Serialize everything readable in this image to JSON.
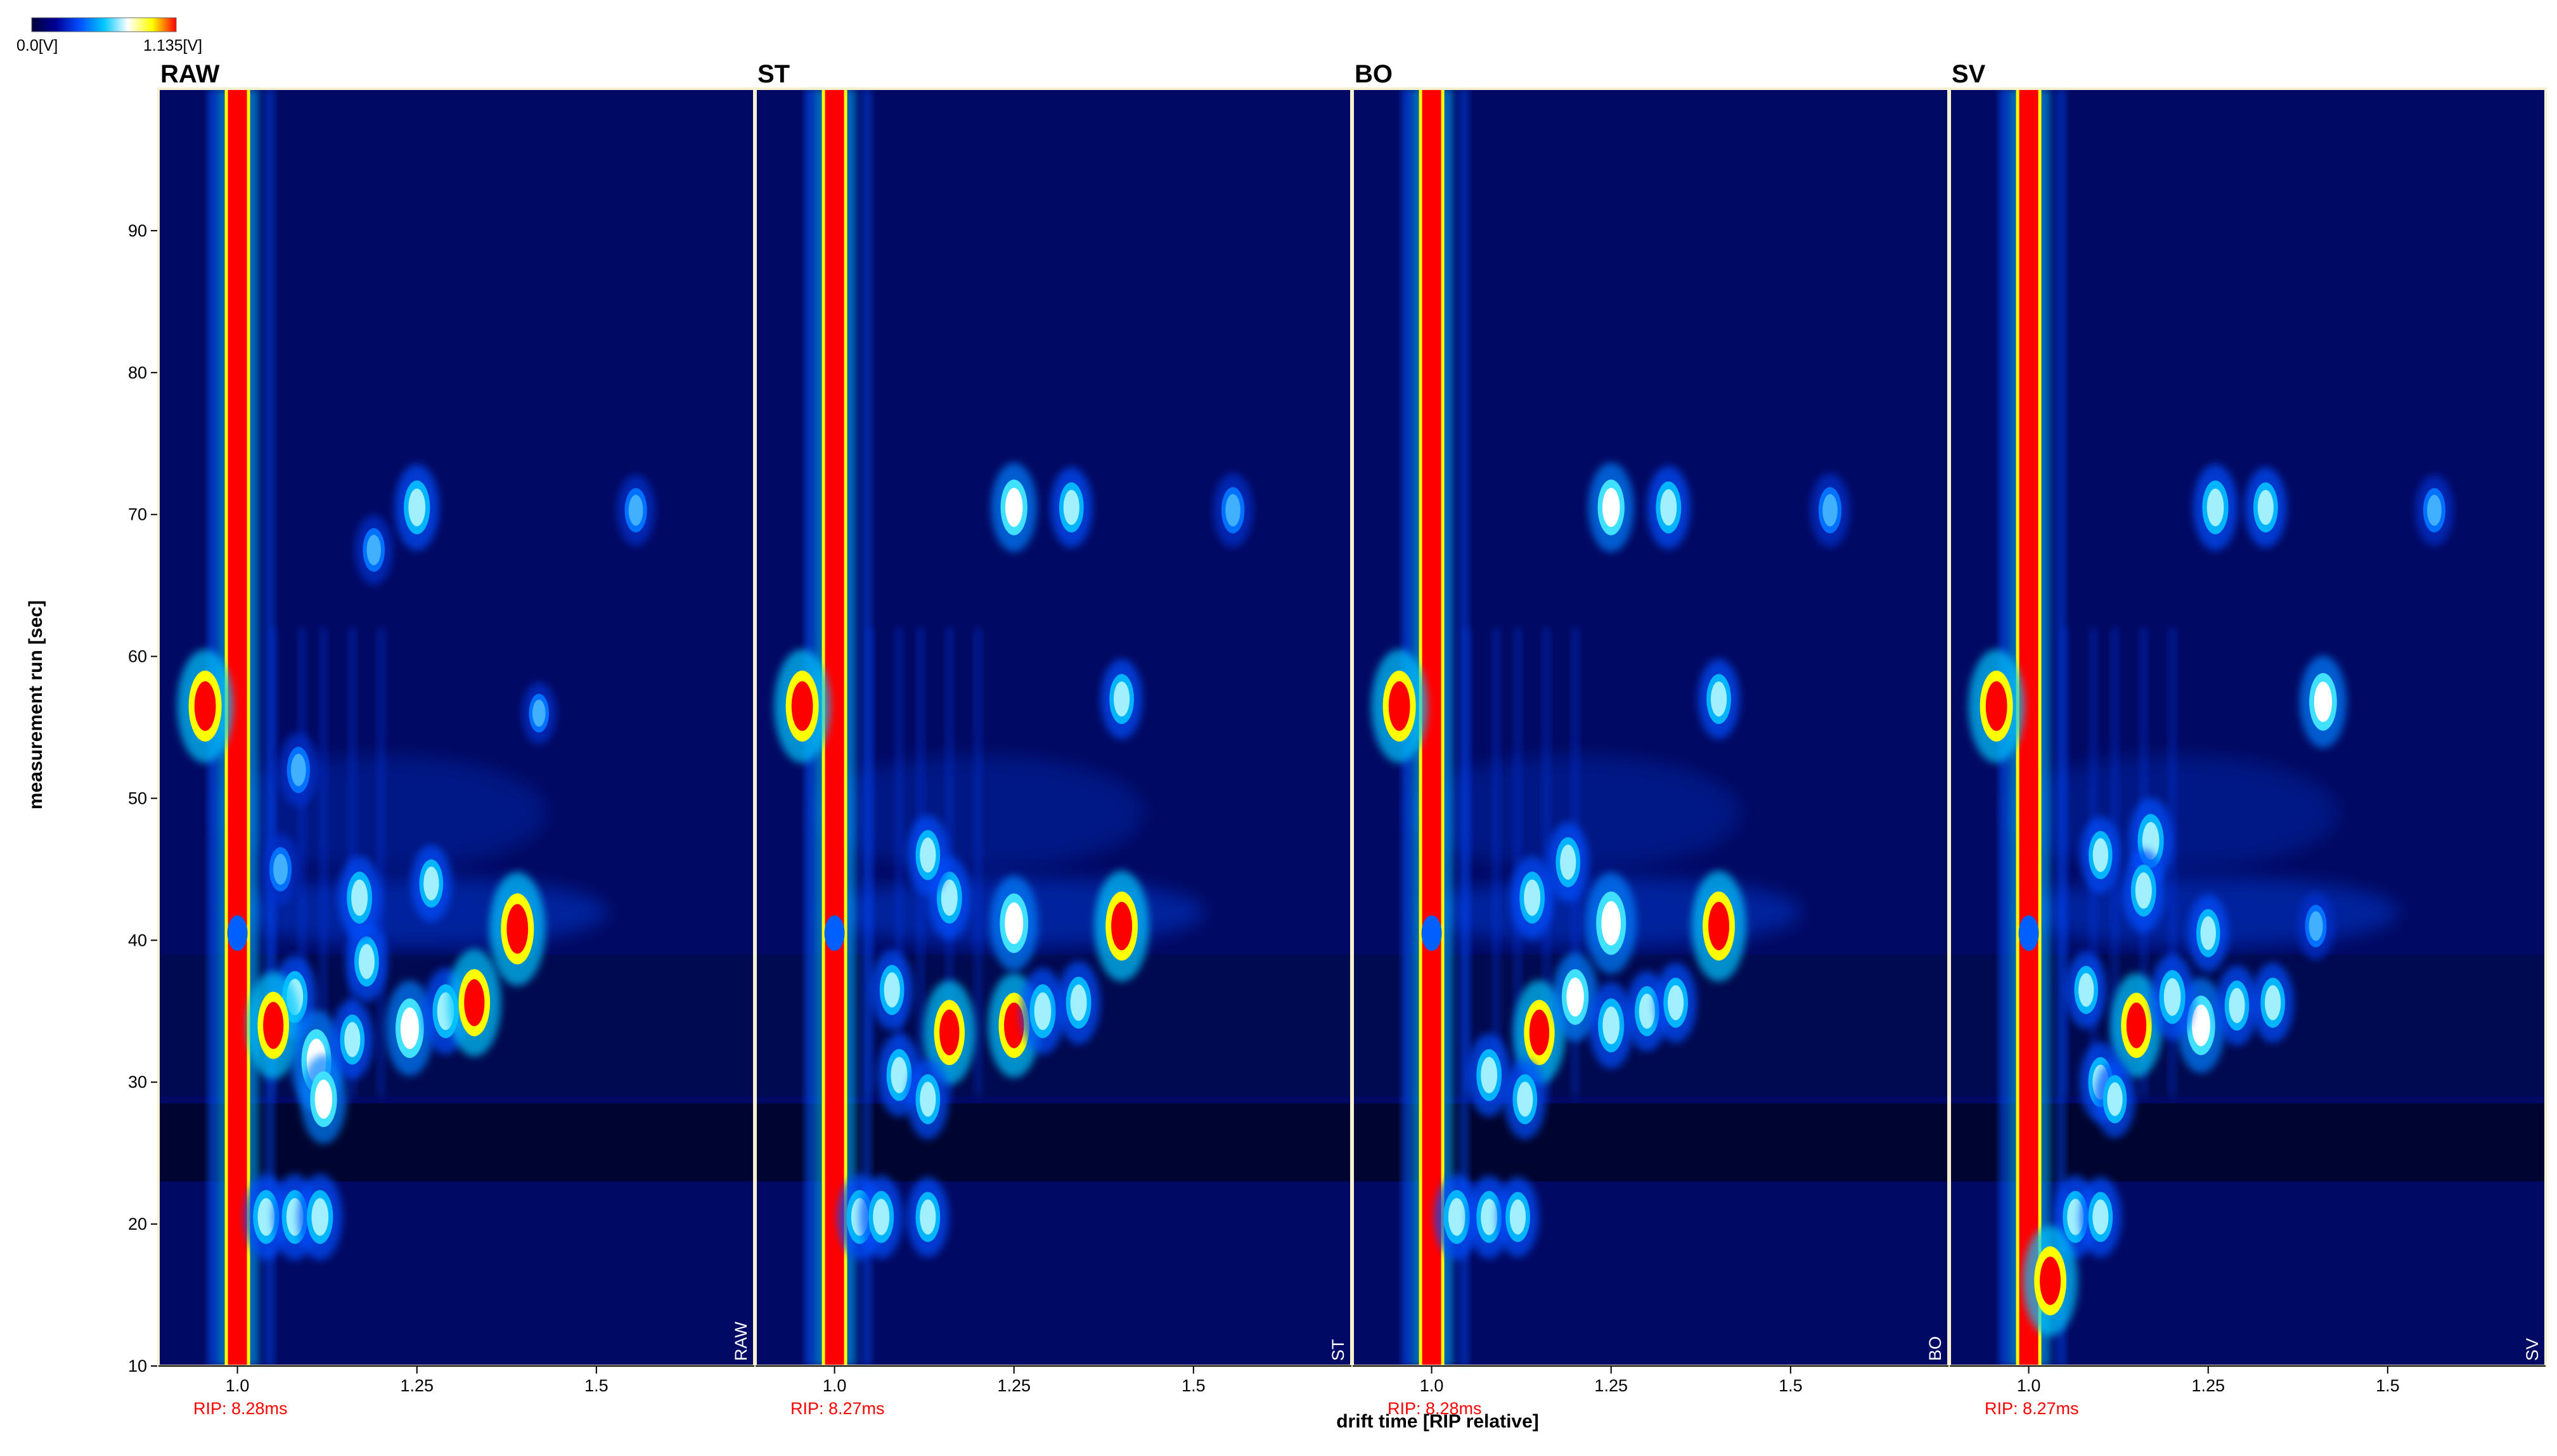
{
  "colorbar": {
    "min_label": "0.0[V]",
    "max_label": "1.135[V]",
    "min_value": 0.0,
    "max_value": 1.135,
    "colors": [
      "#00003c",
      "#000096",
      "#0050ff",
      "#00c8ff",
      "#ffffff",
      "#ffff00",
      "#ff0000"
    ]
  },
  "colors": {
    "rip_label": "#ff0000",
    "corner_label": "#ffffff",
    "panel_separator": "#f5f0d0",
    "background": "#000a64"
  },
  "chart_data": {
    "type": "heatmap",
    "xlabel": "drift time [RIP relative]",
    "ylabel": "measurement run [sec]",
    "xlim": [
      0.89,
      1.72
    ],
    "ylim": [
      10,
      100
    ],
    "xticks": [
      1.0,
      1.25,
      1.5
    ],
    "xtick_labels": [
      "1.0",
      "1.25",
      "1.5"
    ],
    "yticks": [
      10,
      20,
      30,
      40,
      50,
      60,
      70,
      80,
      90
    ],
    "ytick_labels": [
      "10",
      "20",
      "30",
      "40",
      "50",
      "60",
      "70",
      "80",
      "90"
    ],
    "panels": [
      {
        "title": "RAW",
        "corner_label": "RAW",
        "rip_label": "RIP: 8.28ms",
        "peaks": [
          {
            "x": 0.955,
            "y": 56.5,
            "i": 1.0
          },
          {
            "x": 1.39,
            "y": 40.8,
            "i": 1.0
          },
          {
            "x": 1.25,
            "y": 70.5,
            "i": 0.55
          },
          {
            "x": 1.555,
            "y": 70.3,
            "i": 0.3
          },
          {
            "x": 1.19,
            "y": 67.5,
            "i": 0.28
          },
          {
            "x": 1.08,
            "y": 36.0,
            "i": 0.5
          },
          {
            "x": 1.05,
            "y": 34.0,
            "i": 0.9
          },
          {
            "x": 1.11,
            "y": 31.5,
            "i": 0.8
          },
          {
            "x": 1.12,
            "y": 28.8,
            "i": 0.6
          },
          {
            "x": 1.16,
            "y": 33.0,
            "i": 0.45
          },
          {
            "x": 1.24,
            "y": 33.8,
            "i": 0.7
          },
          {
            "x": 1.29,
            "y": 35.0,
            "i": 0.55
          },
          {
            "x": 1.33,
            "y": 35.6,
            "i": 0.9
          },
          {
            "x": 1.18,
            "y": 38.5,
            "i": 0.45
          },
          {
            "x": 1.17,
            "y": 43.0,
            "i": 0.5
          },
          {
            "x": 1.27,
            "y": 44.0,
            "i": 0.4
          },
          {
            "x": 1.085,
            "y": 52.0,
            "i": 0.35
          },
          {
            "x": 1.06,
            "y": 45.0,
            "i": 0.3
          },
          {
            "x": 1.04,
            "y": 20.5,
            "i": 0.55
          },
          {
            "x": 1.08,
            "y": 20.5,
            "i": 0.55
          },
          {
            "x": 1.115,
            "y": 20.5,
            "i": 0.55
          },
          {
            "x": 1.42,
            "y": 56.0,
            "i": 0.15
          }
        ]
      },
      {
        "title": "ST",
        "corner_label": "ST",
        "rip_label": "RIP: 8.27ms",
        "peaks": [
          {
            "x": 0.955,
            "y": 56.5,
            "i": 1.0
          },
          {
            "x": 1.4,
            "y": 41.0,
            "i": 0.95
          },
          {
            "x": 1.25,
            "y": 70.5,
            "i": 0.6
          },
          {
            "x": 1.33,
            "y": 70.5,
            "i": 0.45
          },
          {
            "x": 1.555,
            "y": 70.3,
            "i": 0.35
          },
          {
            "x": 1.4,
            "y": 57.0,
            "i": 0.45
          },
          {
            "x": 1.16,
            "y": 33.5,
            "i": 0.85
          },
          {
            "x": 1.25,
            "y": 34.0,
            "i": 0.85
          },
          {
            "x": 1.29,
            "y": 35.0,
            "i": 0.55
          },
          {
            "x": 1.34,
            "y": 35.6,
            "i": 0.5
          },
          {
            "x": 1.25,
            "y": 41.2,
            "i": 0.7
          },
          {
            "x": 1.16,
            "y": 43.0,
            "i": 0.5
          },
          {
            "x": 1.13,
            "y": 46.0,
            "i": 0.45
          },
          {
            "x": 1.09,
            "y": 30.5,
            "i": 0.5
          },
          {
            "x": 1.13,
            "y": 28.8,
            "i": 0.45
          },
          {
            "x": 1.08,
            "y": 36.5,
            "i": 0.45
          },
          {
            "x": 1.035,
            "y": 20.5,
            "i": 0.55
          },
          {
            "x": 1.065,
            "y": 20.5,
            "i": 0.5
          },
          {
            "x": 1.13,
            "y": 20.5,
            "i": 0.45
          }
        ]
      },
      {
        "title": "BO",
        "corner_label": "BO",
        "rip_label": "RIP: 8.28ms",
        "peaks": [
          {
            "x": 0.955,
            "y": 56.5,
            "i": 1.0
          },
          {
            "x": 1.4,
            "y": 41.0,
            "i": 0.95
          },
          {
            "x": 1.25,
            "y": 70.5,
            "i": 0.6
          },
          {
            "x": 1.33,
            "y": 70.5,
            "i": 0.5
          },
          {
            "x": 1.555,
            "y": 70.3,
            "i": 0.35
          },
          {
            "x": 1.4,
            "y": 57.0,
            "i": 0.45
          },
          {
            "x": 1.25,
            "y": 41.2,
            "i": 0.8
          },
          {
            "x": 1.15,
            "y": 33.5,
            "i": 0.85
          },
          {
            "x": 1.2,
            "y": 36.0,
            "i": 0.6
          },
          {
            "x": 1.25,
            "y": 34.0,
            "i": 0.55
          },
          {
            "x": 1.3,
            "y": 35.0,
            "i": 0.45
          },
          {
            "x": 1.34,
            "y": 35.6,
            "i": 0.45
          },
          {
            "x": 1.14,
            "y": 43.0,
            "i": 0.5
          },
          {
            "x": 1.19,
            "y": 45.5,
            "i": 0.45
          },
          {
            "x": 1.08,
            "y": 30.5,
            "i": 0.5
          },
          {
            "x": 1.13,
            "y": 28.8,
            "i": 0.45
          },
          {
            "x": 1.035,
            "y": 20.5,
            "i": 0.55
          },
          {
            "x": 1.08,
            "y": 20.5,
            "i": 0.5
          },
          {
            "x": 1.12,
            "y": 20.5,
            "i": 0.45
          }
        ]
      },
      {
        "title": "SV",
        "corner_label": "SV",
        "rip_label": "RIP: 8.27ms",
        "peaks": [
          {
            "x": 0.955,
            "y": 56.5,
            "i": 1.0
          },
          {
            "x": 1.41,
            "y": 56.8,
            "i": 0.65
          },
          {
            "x": 1.26,
            "y": 70.5,
            "i": 0.55
          },
          {
            "x": 1.33,
            "y": 70.5,
            "i": 0.45
          },
          {
            "x": 1.565,
            "y": 70.3,
            "i": 0.3
          },
          {
            "x": 1.15,
            "y": 34.0,
            "i": 0.85
          },
          {
            "x": 1.24,
            "y": 34.0,
            "i": 0.7
          },
          {
            "x": 1.2,
            "y": 36.0,
            "i": 0.55
          },
          {
            "x": 1.29,
            "y": 35.4,
            "i": 0.45
          },
          {
            "x": 1.34,
            "y": 35.6,
            "i": 0.45
          },
          {
            "x": 1.17,
            "y": 47.0,
            "i": 0.55
          },
          {
            "x": 1.16,
            "y": 43.5,
            "i": 0.5
          },
          {
            "x": 1.1,
            "y": 46.0,
            "i": 0.4
          },
          {
            "x": 1.25,
            "y": 40.5,
            "i": 0.4
          },
          {
            "x": 1.4,
            "y": 41.0,
            "i": 0.25
          },
          {
            "x": 1.1,
            "y": 30.0,
            "i": 0.45
          },
          {
            "x": 1.12,
            "y": 28.8,
            "i": 0.4
          },
          {
            "x": 1.08,
            "y": 36.5,
            "i": 0.4
          },
          {
            "x": 1.065,
            "y": 20.5,
            "i": 0.5
          },
          {
            "x": 1.1,
            "y": 20.5,
            "i": 0.45
          },
          {
            "x": 1.03,
            "y": 16.0,
            "i": 0.95
          }
        ]
      }
    ]
  }
}
